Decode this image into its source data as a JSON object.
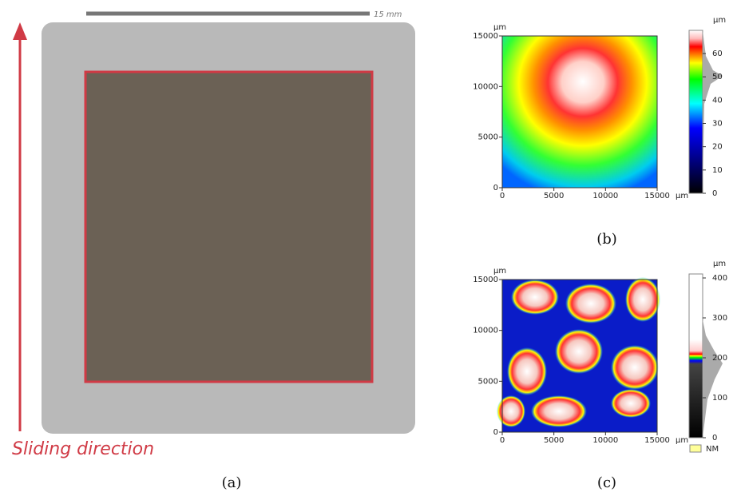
{
  "panel_a": {
    "scale_bar": "15 mm",
    "arrow_label": "Sliding direction",
    "caption": "(a)"
  },
  "panel_b": {
    "caption": "(b)",
    "x_unit": "µm",
    "y_unit": "µm",
    "colorbar_unit": "µm",
    "xticks": [
      0,
      5000,
      10000,
      15000
    ],
    "yticks": [
      0,
      5000,
      10000,
      15000
    ],
    "colorbar_ticks": [
      0,
      10,
      20,
      30,
      40,
      50,
      60
    ]
  },
  "panel_c": {
    "caption": "(c)",
    "x_unit": "µm",
    "y_unit": "µm",
    "colorbar_unit": "µm",
    "xticks": [
      0,
      5000,
      10000,
      15000
    ],
    "yticks": [
      0,
      5000,
      10000,
      15000
    ],
    "colorbar_ticks": [
      0,
      100,
      200,
      300,
      400
    ],
    "legend": "NM"
  }
}
